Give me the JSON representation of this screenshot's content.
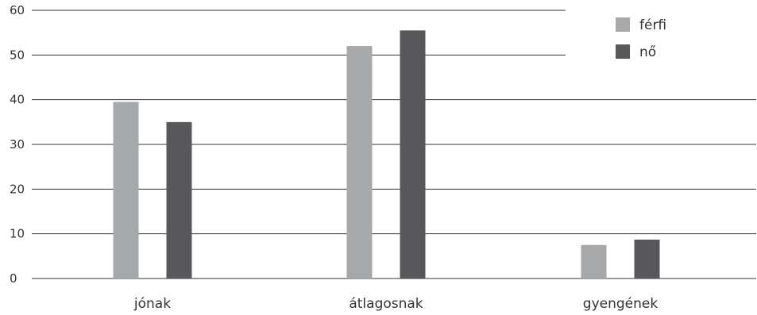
{
  "chart_data": {
    "type": "bar",
    "categories": [
      "jónak",
      "átlagosnak",
      "gyengének"
    ],
    "series": [
      {
        "name": "férfi",
        "values": [
          39.5,
          52.0,
          7.5
        ],
        "color": "#a7a8aa"
      },
      {
        "name": "nő",
        "values": [
          35.0,
          55.5,
          8.7
        ],
        "color": "#58585a"
      }
    ],
    "title": "",
    "xlabel": "",
    "ylabel": "",
    "ylim": [
      0,
      60
    ],
    "yticks": [
      "0",
      "10",
      "20",
      "30",
      "40",
      "50",
      "60"
    ],
    "grid": true,
    "legend_position": "top-right"
  }
}
